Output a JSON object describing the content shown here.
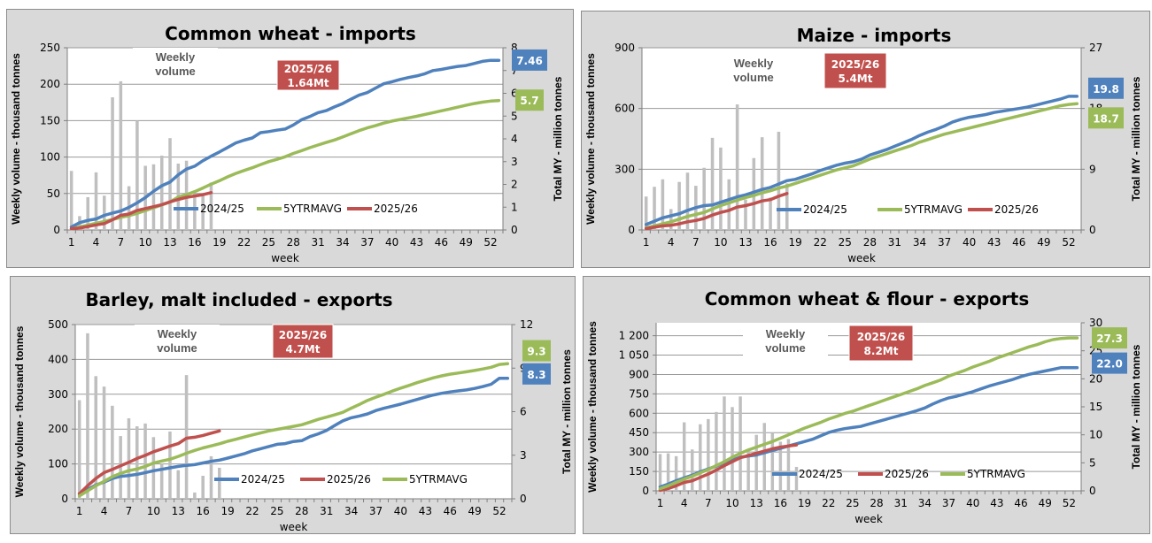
{
  "colors": {
    "y2024": "#4f81bd",
    "avg": "#9bbb59",
    "y2025": "#c0504d",
    "bars": "#bfbfbf",
    "grid": "#999999"
  },
  "chart_data": [
    {
      "id": "wheat-imports",
      "type": "bar+line",
      "title": "Common wheat - imports",
      "xlabel": "week",
      "ylabel": "Weekly volume - thousand tonnes",
      "y2label": "Total MY - million tonnes",
      "annotation": "Weekly\nvolume",
      "ylim": [
        0,
        250
      ],
      "yticks": [
        "0",
        "50",
        "100",
        "150",
        "200",
        "250"
      ],
      "y2lim": [
        0,
        8
      ],
      "y2ticks": [
        "0",
        "1",
        "2",
        "3",
        "4",
        "5",
        "6",
        "7",
        "8"
      ],
      "xticks": [
        "1",
        "4",
        "7",
        "10",
        "13",
        "16",
        "19",
        "22",
        "25",
        "28",
        "31",
        "34",
        "37",
        "40",
        "43",
        "46",
        "49",
        "52"
      ],
      "weeks": 53,
      "bars": [
        81,
        19,
        45,
        79,
        47,
        182,
        204,
        60,
        150,
        88,
        90,
        102,
        126,
        91,
        95,
        50,
        50,
        65
      ],
      "legend": [
        "2024/25",
        "5YTRMAVG",
        "2025/26"
      ],
      "series": [
        {
          "name": "2024/25",
          "key": "y2024",
          "values": [
            0.13,
            0.32,
            0.42,
            0.48,
            0.64,
            0.74,
            0.83,
            0.99,
            1.19,
            1.42,
            1.7,
            1.94,
            2.1,
            2.42,
            2.67,
            2.8,
            3.04,
            3.24,
            3.42,
            3.62,
            3.82,
            3.94,
            4.04,
            4.27,
            4.32,
            4.38,
            4.43,
            4.61,
            4.84,
            4.98,
            5.15,
            5.24,
            5.4,
            5.55,
            5.74,
            5.92,
            6.03,
            6.23,
            6.42,
            6.51,
            6.61,
            6.69,
            6.76,
            6.86,
            7.0,
            7.05,
            7.12,
            7.18,
            7.22,
            7.31,
            7.4,
            7.45,
            7.45
          ]
        },
        {
          "name": "5YTRMAVG",
          "key": "avg",
          "values": [
            0.05,
            0.13,
            0.21,
            0.29,
            0.37,
            0.46,
            0.55,
            0.63,
            0.73,
            0.85,
            0.98,
            1.1,
            1.23,
            1.44,
            1.55,
            1.68,
            1.84,
            2.01,
            2.16,
            2.33,
            2.48,
            2.61,
            2.73,
            2.87,
            3.0,
            3.1,
            3.21,
            3.36,
            3.48,
            3.61,
            3.73,
            3.84,
            3.95,
            4.08,
            4.22,
            4.36,
            4.48,
            4.58,
            4.69,
            4.78,
            4.85,
            4.92,
            4.99,
            5.07,
            5.15,
            5.23,
            5.31,
            5.39,
            5.47,
            5.55,
            5.61,
            5.66,
            5.68
          ]
        },
        {
          "name": "2025/26",
          "key": "y2025",
          "values": [
            0.06,
            0.08,
            0.15,
            0.22,
            0.28,
            0.45,
            0.64,
            0.7,
            0.86,
            0.94,
            1.02,
            1.11,
            1.23,
            1.34,
            1.43,
            1.49,
            1.55,
            1.64
          ]
        }
      ],
      "labels": [
        {
          "text": "7.46",
          "key": "y2024",
          "value": 7.46
        },
        {
          "text": "5.7",
          "key": "avg",
          "value": 5.7
        }
      ],
      "total_box": {
        "line1": "2025/26",
        "line2": "1.64Mt"
      }
    },
    {
      "id": "maize-imports",
      "type": "bar+line",
      "title": "Maize - imports",
      "xlabel": "week",
      "ylabel": "Weekly volume - thousand tonnes",
      "y2label": "Total MY - million tonnes",
      "annotation": "Weekly\nvolume",
      "ylim": [
        0,
        900
      ],
      "yticks": [
        "0",
        "300",
        "600",
        "900"
      ],
      "y2lim": [
        0,
        27
      ],
      "y2ticks": [
        "0",
        "9",
        "18",
        "27"
      ],
      "xticks": [
        "1",
        "4",
        "7",
        "10",
        "13",
        "16",
        "19",
        "22",
        "25",
        "28",
        "31",
        "34",
        "37",
        "40",
        "43",
        "46",
        "49",
        "52"
      ],
      "weeks": 53,
      "bars": [
        165,
        213,
        250,
        103,
        237,
        283,
        218,
        307,
        455,
        407,
        250,
        620,
        150,
        355,
        458,
        160,
        485,
        230
      ],
      "legend": [
        "2024/25",
        "5YTRMAVG",
        "2025/26"
      ],
      "series": [
        {
          "name": "2024/25",
          "key": "y2024",
          "values": [
            0.8,
            1.3,
            1.8,
            2.1,
            2.4,
            2.9,
            3.3,
            3.6,
            3.7,
            4.1,
            4.5,
            4.9,
            5.2,
            5.6,
            6.0,
            6.3,
            6.8,
            7.3,
            7.5,
            7.9,
            8.3,
            8.8,
            9.2,
            9.6,
            9.9,
            10.1,
            10.5,
            11.1,
            11.5,
            11.9,
            12.4,
            12.9,
            13.4,
            14.0,
            14.5,
            14.9,
            15.4,
            16.0,
            16.4,
            16.7,
            16.9,
            17.1,
            17.4,
            17.6,
            17.8,
            18.0,
            18.2,
            18.5,
            18.8,
            19.1,
            19.4,
            19.8,
            19.8
          ]
        },
        {
          "name": "5YTRMAVG",
          "key": "avg",
          "values": [
            0.3,
            0.6,
            0.9,
            1.2,
            1.6,
            2.0,
            2.3,
            2.6,
            3.1,
            3.6,
            4.0,
            4.4,
            4.8,
            5.1,
            5.5,
            5.8,
            6.2,
            6.5,
            6.9,
            7.3,
            7.7,
            8.1,
            8.5,
            8.9,
            9.2,
            9.5,
            10.0,
            10.5,
            10.9,
            11.3,
            11.7,
            12.1,
            12.5,
            13.0,
            13.4,
            13.8,
            14.2,
            14.5,
            14.8,
            15.1,
            15.4,
            15.7,
            16.0,
            16.3,
            16.6,
            16.9,
            17.2,
            17.5,
            17.8,
            18.1,
            18.4,
            18.6,
            18.7
          ]
        },
        {
          "name": "2025/26",
          "key": "y2025",
          "values": [
            0.2,
            0.4,
            0.6,
            0.7,
            0.9,
            1.2,
            1.4,
            1.7,
            2.2,
            2.6,
            2.9,
            3.4,
            3.6,
            3.9,
            4.3,
            4.5,
            5.0,
            5.4
          ]
        }
      ],
      "labels": [
        {
          "text": "19.8",
          "key": "y2024",
          "value": 21.0
        },
        {
          "text": "18.7",
          "key": "avg",
          "value": 16.6
        }
      ],
      "total_box": {
        "line1": "2025/26",
        "line2": "5.4Mt"
      }
    },
    {
      "id": "barley-exports",
      "type": "bar+line",
      "title": "Barley, malt included - exports",
      "xlabel": "week",
      "ylabel": "Weekly volume - thousand tonnes",
      "y2label": "Total MY - million tonnes",
      "annotation": "Weekly\nvolume",
      "ylim": [
        0,
        500
      ],
      "yticks": [
        "0",
        "100",
        "200",
        "300",
        "400",
        "500"
      ],
      "y2lim": [
        0,
        12
      ],
      "y2ticks": [
        "0",
        "3",
        "6",
        "9",
        "12"
      ],
      "xticks": [
        "1",
        "4",
        "7",
        "10",
        "13",
        "16",
        "19",
        "22",
        "25",
        "28",
        "31",
        "34",
        "37",
        "40",
        "43",
        "46",
        "49",
        "52"
      ],
      "weeks": 53,
      "bars": [
        283,
        475,
        352,
        322,
        267,
        180,
        231,
        208,
        216,
        177,
        100,
        193,
        82,
        355,
        18,
        66,
        122,
        89
      ],
      "legend": [
        "2024/25",
        "2025/26",
        "5YTRMAVG"
      ],
      "series": [
        {
          "name": "2024/25",
          "key": "y2024",
          "values": [
            0.35,
            0.65,
            0.95,
            1.15,
            1.4,
            1.55,
            1.6,
            1.68,
            1.8,
            1.93,
            2.03,
            2.13,
            2.23,
            2.3,
            2.35,
            2.47,
            2.58,
            2.66,
            2.8,
            2.95,
            3.1,
            3.3,
            3.45,
            3.6,
            3.75,
            3.8,
            3.95,
            4.0,
            4.28,
            4.47,
            4.7,
            5.05,
            5.37,
            5.58,
            5.7,
            5.85,
            6.08,
            6.24,
            6.38,
            6.52,
            6.68,
            6.84,
            7.0,
            7.15,
            7.27,
            7.36,
            7.43,
            7.5,
            7.6,
            7.73,
            7.89,
            8.3,
            8.3
          ]
        },
        {
          "name": "2025/26",
          "key": "y2025",
          "values": [
            0.35,
            0.9,
            1.4,
            1.8,
            2.02,
            2.27,
            2.51,
            2.78,
            2.99,
            3.24,
            3.43,
            3.63,
            3.8,
            4.17,
            4.24,
            4.36,
            4.52,
            4.67
          ]
        },
        {
          "name": "5YTRMAVG",
          "key": "avg",
          "values": [
            0.2,
            0.55,
            0.9,
            1.2,
            1.52,
            1.75,
            1.94,
            2.05,
            2.23,
            2.46,
            2.6,
            2.72,
            2.92,
            3.14,
            3.33,
            3.5,
            3.64,
            3.79,
            3.96,
            4.1,
            4.25,
            4.4,
            4.53,
            4.67,
            4.78,
            4.88,
            4.99,
            5.1,
            5.28,
            5.47,
            5.62,
            5.78,
            5.96,
            6.24,
            6.5,
            6.78,
            7.0,
            7.2,
            7.42,
            7.62,
            7.8,
            8.0,
            8.17,
            8.33,
            8.47,
            8.58,
            8.66,
            8.75,
            8.84,
            8.94,
            9.06,
            9.25,
            9.3
          ]
        }
      ],
      "labels": [
        {
          "text": "9.3",
          "key": "avg",
          "value": 10.2
        },
        {
          "text": "8.3",
          "key": "y2024",
          "value": 8.6
        }
      ],
      "total_box": {
        "line1": "2025/26",
        "line2": "4.7Mt"
      }
    },
    {
      "id": "wheat-flour-exports",
      "type": "bar+line",
      "title": "Common wheat & flour - exports",
      "xlabel": "week",
      "ylabel": "Weekly volume - thousand tonnes",
      "y2label": "Total MY - million tonnes",
      "annotation": "Weekly\nvolume",
      "ylim": [
        0,
        1300
      ],
      "yticks": [
        "0",
        "150",
        "300",
        "450",
        "600",
        "750",
        "900",
        "1 050",
        "1 200"
      ],
      "ytick_values": [
        0,
        150,
        300,
        450,
        600,
        750,
        900,
        1050,
        1200
      ],
      "y2lim": [
        0,
        30
      ],
      "y2ticks": [
        "0",
        "5",
        "10",
        "15",
        "20",
        "25",
        "30"
      ],
      "xticks": [
        "1",
        "4",
        "7",
        "10",
        "13",
        "16",
        "19",
        "22",
        "25",
        "28",
        "31",
        "34",
        "37",
        "40",
        "43",
        "46",
        "49",
        "52"
      ],
      "weeks": 53,
      "bars": [
        285,
        290,
        268,
        530,
        320,
        515,
        555,
        610,
        730,
        648,
        730,
        320,
        433,
        525,
        450,
        380,
        400,
        185
      ],
      "legend": [
        "2024/25",
        "2025/26",
        "5YTRMAVG"
      ],
      "series": [
        {
          "name": "2024/25",
          "key": "y2024",
          "values": [
            0.7,
            1.2,
            1.8,
            2.3,
            2.8,
            3.4,
            3.9,
            4.4,
            5.0,
            5.5,
            6.0,
            6.2,
            6.4,
            6.8,
            7.2,
            7.6,
            8.0,
            8.4,
            8.8,
            9.2,
            9.8,
            10.4,
            10.8,
            11.1,
            11.3,
            11.5,
            11.9,
            12.3,
            12.7,
            13.1,
            13.5,
            13.9,
            14.3,
            14.8,
            15.5,
            16.1,
            16.6,
            16.9,
            17.3,
            17.7,
            18.2,
            18.7,
            19.1,
            19.5,
            19.9,
            20.4,
            20.8,
            21.1,
            21.4,
            21.7,
            22.0,
            22.0,
            22.0
          ]
        },
        {
          "name": "2025/26",
          "key": "y2025",
          "values": [
            0.1,
            0.4,
            0.9,
            1.5,
            1.8,
            2.4,
            3.0,
            3.7,
            4.5,
            5.2,
            5.9,
            6.3,
            6.7,
            7.1,
            7.5,
            7.8,
            8.0,
            8.2
          ]
        },
        {
          "name": "5YTRMAVG",
          "key": "avg",
          "values": [
            0.4,
            0.9,
            1.5,
            2.1,
            2.6,
            3.2,
            3.8,
            4.5,
            5.2,
            6.0,
            6.7,
            7.3,
            7.8,
            8.3,
            8.8,
            9.4,
            10.0,
            10.6,
            11.2,
            11.7,
            12.2,
            12.8,
            13.3,
            13.8,
            14.2,
            14.7,
            15.2,
            15.7,
            16.2,
            16.7,
            17.2,
            17.7,
            18.2,
            18.8,
            19.3,
            19.8,
            20.5,
            21.0,
            21.5,
            22.1,
            22.6,
            23.1,
            23.7,
            24.2,
            24.7,
            25.2,
            25.7,
            26.1,
            26.6,
            27.0,
            27.2,
            27.3,
            27.3
          ]
        }
      ],
      "labels": [
        {
          "text": "27.3",
          "key": "avg",
          "value": 27.3
        },
        {
          "text": "22.0",
          "key": "y2024",
          "value": 22.8
        }
      ],
      "total_box": {
        "line1": "2025/26",
        "line2": "8.2Mt"
      }
    }
  ]
}
